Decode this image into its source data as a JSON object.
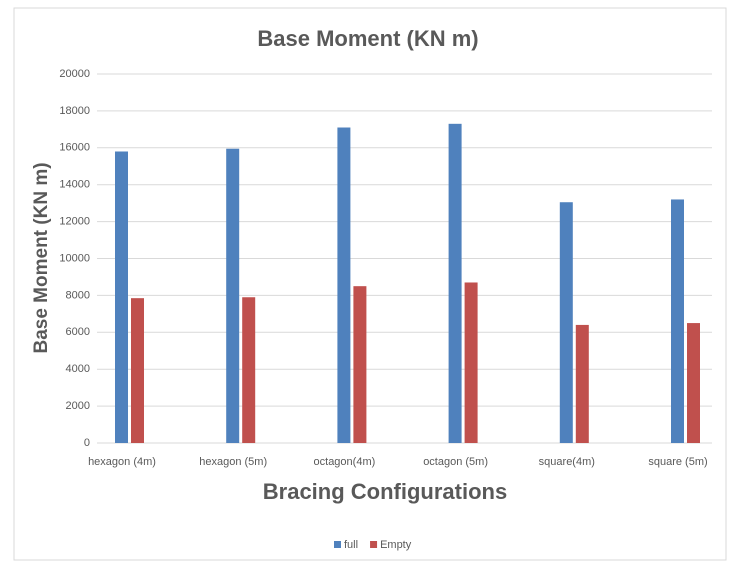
{
  "chart_data": {
    "type": "bar",
    "title": "Base Moment (KN m)",
    "x_label": "Bracing Configurations",
    "y_label": "Base Moment (KN m)",
    "categories": [
      "hexagon (4m)",
      "hexagon (5m)",
      "octagon(4m)",
      "octagon (5m)",
      "square(4m)",
      "square (5m)"
    ],
    "series": [
      {
        "name": "full",
        "color": "#4f81bd",
        "values": [
          15800,
          15950,
          17100,
          17300,
          13050,
          13200
        ]
      },
      {
        "name": "Empty",
        "color": "#c0504d",
        "values": [
          7850,
          7900,
          8500,
          8700,
          6400,
          6500
        ]
      }
    ],
    "ylim": [
      0,
      20000
    ],
    "yticks": [
      0,
      2000,
      4000,
      6000,
      8000,
      10000,
      12000,
      14000,
      16000,
      18000,
      20000
    ],
    "grid": true,
    "legend": "bottom"
  }
}
